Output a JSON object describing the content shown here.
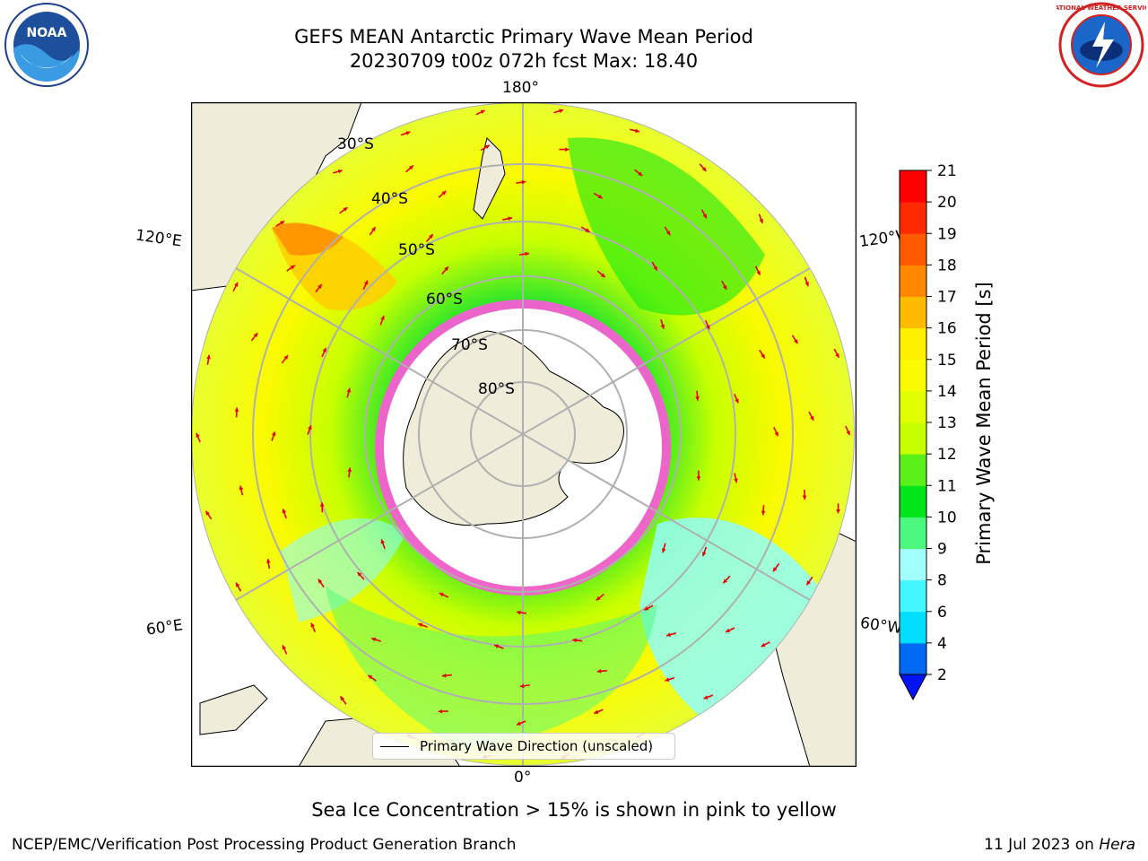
{
  "header": {
    "title_line1": "GEFS MEAN Antarctic Primary Wave Mean Period",
    "title_line2": "20230709 t00z 072h fcst   Max: 18.40"
  },
  "logos": {
    "left": {
      "name": "noaa-logo",
      "text": "NOAA"
    },
    "right": {
      "name": "nws-logo",
      "text": "NATIONAL WEATHER SERVICE"
    }
  },
  "map": {
    "projection": "south-polar-stereographic",
    "longitude_labels": {
      "top": "180°",
      "bottom": "0°",
      "upper_left": "120°E",
      "upper_right": "120°W",
      "lower_left": "60°E",
      "lower_right": "60°W"
    },
    "latitude_labels": [
      "30°S",
      "40°S",
      "50°S",
      "60°S",
      "70°S",
      "80°S"
    ],
    "legend": {
      "label": "Primary Wave Direction (unscaled)"
    },
    "colors": {
      "land": "#efedda",
      "ice": "#ffffff",
      "arrow": "#e60000",
      "grid": "#b0b0b0"
    }
  },
  "colorbar": {
    "label": "Primary Wave Mean Period [s]",
    "ticks": [
      "2",
      "4",
      "6",
      "8",
      "9",
      "10",
      "11",
      "12",
      "13",
      "14",
      "15",
      "16",
      "17",
      "18",
      "19",
      "20",
      "21"
    ],
    "colors": [
      "#0069f4",
      "#00ddff",
      "#44f6ff",
      "#a3fefe",
      "#4cf97e",
      "#00e61a",
      "#5cf01a",
      "#c7ff00",
      "#e1ff00",
      "#fafa00",
      "#fff000",
      "#ffbb00",
      "#ff8800",
      "#ff5a00",
      "#ff2a00",
      "#fe0000"
    ],
    "extend_color": "#0014f5"
  },
  "caption": "Sea Ice Concentration > 15% is shown in pink to yellow",
  "footer": {
    "left": "NCEP/EMC/Verification Post Processing Product Generation Branch",
    "right_date": "11 Jul 2023 on ",
    "right_host": "Hera"
  }
}
